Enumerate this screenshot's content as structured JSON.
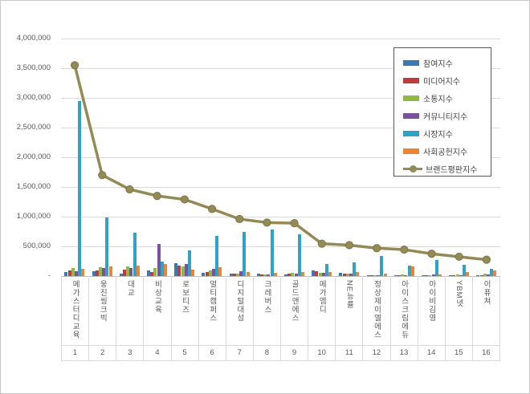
{
  "chart_data": {
    "type": "bar",
    "title": "",
    "categories": [
      "메가스터디교육",
      "웅진씽크빅",
      "대교",
      "비상교육",
      "로보티즈",
      "멀티캠퍼스",
      "디지털대성",
      "크레버스",
      "골드앤에스",
      "메가엠디",
      "NE능률",
      "정상제이엘에스",
      "아이스크림에듀",
      "아이비김영",
      "YBM넷",
      "이퓨쳐"
    ],
    "category_numbers": [
      "1",
      "2",
      "3",
      "4",
      "5",
      "6",
      "7",
      "8",
      "9",
      "10",
      "11",
      "12",
      "13",
      "14",
      "15",
      "16"
    ],
    "series": [
      {
        "name": "참여지수",
        "color": "#3A77B5",
        "values": [
          70000,
          80000,
          45000,
          90000,
          220000,
          55000,
          40000,
          45000,
          25000,
          90000,
          55000,
          20000,
          20000,
          15000,
          15000,
          15000
        ]
      },
      {
        "name": "미디어지수",
        "color": "#BE3C3C",
        "values": [
          95000,
          95000,
          110000,
          70000,
          180000,
          70000,
          45000,
          27000,
          35000,
          80000,
          45000,
          15000,
          20000,
          15000,
          20000,
          10000
        ]
      },
      {
        "name": "소통지수",
        "color": "#8DBB3F",
        "values": [
          140000,
          150000,
          160000,
          135000,
          160000,
          95000,
          45000,
          27000,
          60000,
          60000,
          36000,
          15000,
          25000,
          20000,
          25000,
          35000
        ]
      },
      {
        "name": "커뮤니티지수",
        "color": "#7C51A1",
        "values": [
          80000,
          135000,
          135000,
          540000,
          200000,
          120000,
          80000,
          25000,
          40000,
          60000,
          45000,
          15000,
          20000,
          25000,
          15000,
          25000
        ]
      },
      {
        "name": "시장지수",
        "color": "#31A2C6",
        "values": [
          2950000,
          980000,
          730000,
          245000,
          430000,
          680000,
          740000,
          780000,
          700000,
          200000,
          230000,
          340000,
          175000,
          275000,
          190000,
          120000
        ]
      },
      {
        "name": "사회공헌지수",
        "color": "#EC8533",
        "values": [
          120000,
          165000,
          175000,
          200000,
          110000,
          150000,
          65000,
          55000,
          70000,
          70000,
          65000,
          40000,
          160000,
          25000,
          70000,
          100000
        ]
      }
    ],
    "line_series": {
      "name": "브랜드평판지수",
      "color": "#948A54",
      "marker_edge": "#7d744a",
      "values": [
        3550000,
        1700000,
        1460000,
        1350000,
        1290000,
        1130000,
        960000,
        900000,
        890000,
        545000,
        520000,
        470000,
        445000,
        375000,
        325000,
        275000
      ]
    },
    "ylim": [
      0,
      4000000
    ],
    "ytick_interval": 500000,
    "ytick_labels": [
      "4,000,000",
      "3,500,000",
      "3,000,000",
      "2,500,000",
      "2,000,000",
      "1,500,000",
      "1,000,000",
      "500,000",
      "-"
    ],
    "grid": true,
    "legend_position": "top-right",
    "colors": {
      "grid": "#d9d9d9",
      "axis_line": "#bfbfbf",
      "tick_text": "#595959",
      "legend_border": "#595959"
    }
  }
}
